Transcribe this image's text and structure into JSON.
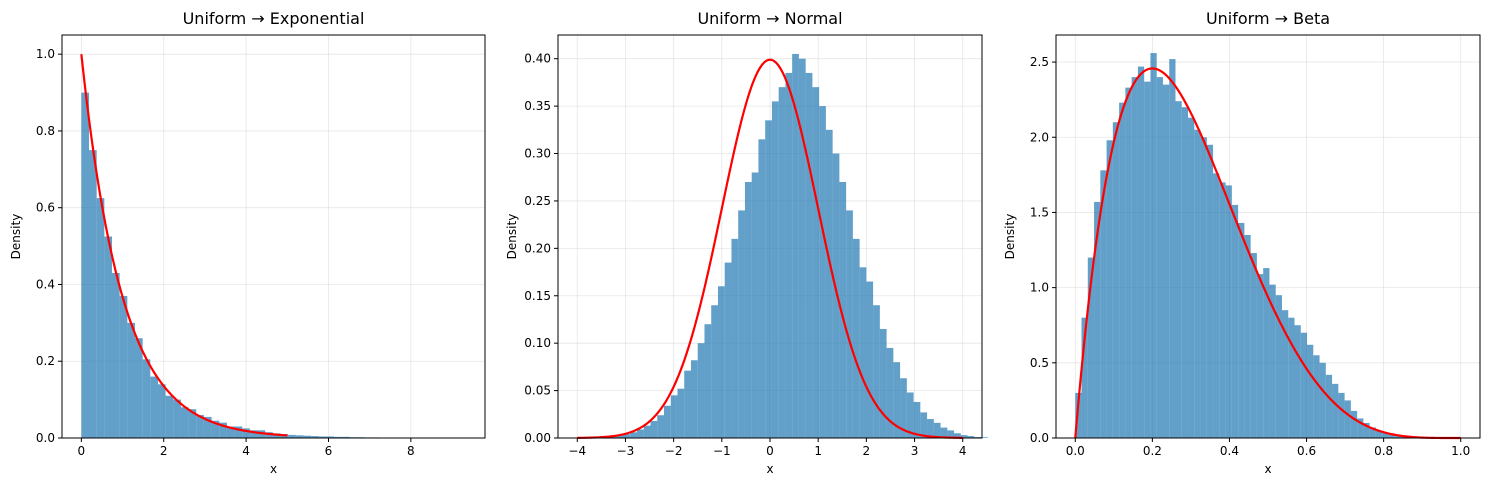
{
  "chart_data": [
    {
      "type": "bar",
      "title": "Uniform → Exponential",
      "xlabel": "x",
      "ylabel": "Density",
      "xlim": [
        -0.47,
        9.8
      ],
      "ylim": [
        0,
        1.05
      ],
      "xticks": [
        0,
        2,
        4,
        6,
        8
      ],
      "xtick_labels": [
        "0",
        "2",
        "4",
        "6",
        "8"
      ],
      "yticks": [
        0,
        0.2,
        0.4,
        0.6,
        0.8,
        1.0
      ],
      "ytick_labels": [
        "0.0",
        "0.2",
        "0.4",
        "0.6",
        "0.8",
        "1.0"
      ],
      "grid": true,
      "bar_color": "#1f77b4",
      "curve_color": "#ff0000",
      "histogram": {
        "bin_start": 0,
        "bin_width": 0.186,
        "values": [
          0.9,
          0.75,
          0.625,
          0.525,
          0.43,
          0.37,
          0.3,
          0.26,
          0.205,
          0.16,
          0.14,
          0.11,
          0.1,
          0.08,
          0.075,
          0.06,
          0.055,
          0.045,
          0.04,
          0.03,
          0.03,
          0.025,
          0.02,
          0.02,
          0.015,
          0.012,
          0.01,
          0.008,
          0.007,
          0.006,
          0.005,
          0.004,
          0.004,
          0.003,
          0.003,
          0.002,
          0.002,
          0.0015,
          0.0015,
          0.001,
          0.001,
          0.001,
          0.0008,
          0.0008,
          0.0006,
          0.0006,
          0.0005,
          0.0005,
          0.0004,
          0.0004
        ]
      },
      "curve": {
        "label": "",
        "function": "exp(-x)",
        "x_range": [
          0,
          5
        ]
      }
    },
    {
      "type": "bar",
      "title": "Uniform → Normal",
      "xlabel": "x",
      "ylabel": "Density",
      "xlim": [
        -4.4,
        4.4
      ],
      "ylim": [
        0,
        0.425
      ],
      "xticks": [
        -4,
        -3,
        -2,
        -1,
        0,
        1,
        2,
        3,
        4
      ],
      "xtick_labels": [
        "−4",
        "−3",
        "−2",
        "−1",
        "0",
        "1",
        "2",
        "3",
        "4"
      ],
      "yticks": [
        0,
        0.05,
        0.1,
        0.15,
        0.2,
        0.25,
        0.3,
        0.35,
        0.4
      ],
      "ytick_labels": [
        "0.00",
        "0.05",
        "0.10",
        "0.15",
        "0.20",
        "0.25",
        "0.30",
        "0.35",
        "0.40"
      ],
      "grid": true,
      "bar_color": "#1f77b4",
      "curve_color": "#ff0000",
      "histogram": {
        "bin_start": -3.6,
        "bin_width": 0.14,
        "values": [
          0.0008,
          0.0012,
          0.002,
          0.003,
          0.004,
          0.006,
          0.009,
          0.013,
          0.018,
          0.024,
          0.034,
          0.045,
          0.052,
          0.071,
          0.082,
          0.1,
          0.12,
          0.14,
          0.16,
          0.185,
          0.21,
          0.24,
          0.27,
          0.28,
          0.315,
          0.335,
          0.355,
          0.37,
          0.385,
          0.405,
          0.4,
          0.385,
          0.37,
          0.35,
          0.325,
          0.3,
          0.27,
          0.24,
          0.21,
          0.18,
          0.165,
          0.14,
          0.115,
          0.095,
          0.08,
          0.063,
          0.048,
          0.038,
          0.027,
          0.02,
          0.016,
          0.011,
          0.008,
          0.005,
          0.003,
          0.002,
          0.001,
          0.0008
        ]
      },
      "curve": {
        "label": "",
        "function": "normal(0,1)",
        "x_range": [
          -4,
          4
        ]
      }
    },
    {
      "type": "bar",
      "title": "Uniform → Beta",
      "xlabel": "x",
      "ylabel": "Density",
      "xlim": [
        -0.05,
        1.05
      ],
      "ylim": [
        0,
        2.68
      ],
      "xticks": [
        0,
        0.2,
        0.4,
        0.6,
        0.8,
        1.0
      ],
      "xtick_labels": [
        "0.0",
        "0.2",
        "0.4",
        "0.6",
        "0.8",
        "1.0"
      ],
      "yticks": [
        0,
        0.5,
        1.0,
        1.5,
        2.0,
        2.5
      ],
      "ytick_labels": [
        "0.0",
        "0.5",
        "1.0",
        "1.5",
        "2.0",
        "2.5"
      ],
      "grid": true,
      "bar_color": "#1f77b4",
      "curve_color": "#ff0000",
      "histogram": {
        "bin_start": 0.0,
        "bin_width": 0.01625,
        "values": [
          0.3,
          0.8,
          1.2,
          1.57,
          1.78,
          1.98,
          2.1,
          2.23,
          2.33,
          2.4,
          2.47,
          2.37,
          2.56,
          2.4,
          2.35,
          2.52,
          2.24,
          2.2,
          2.13,
          2.05,
          2.0,
          1.95,
          1.76,
          1.7,
          1.68,
          1.55,
          1.43,
          1.35,
          1.23,
          1.09,
          1.13,
          1.02,
          0.95,
          0.85,
          0.8,
          0.75,
          0.7,
          0.62,
          0.55,
          0.5,
          0.42,
          0.36,
          0.3,
          0.25,
          0.18,
          0.13,
          0.1,
          0.07,
          0.05,
          0.035,
          0.025,
          0.015,
          0.01,
          0.006,
          0.004,
          0.002
        ]
      },
      "curve": {
        "label": "",
        "function": "beta(2,5)",
        "x_range": [
          0,
          1
        ]
      }
    }
  ]
}
